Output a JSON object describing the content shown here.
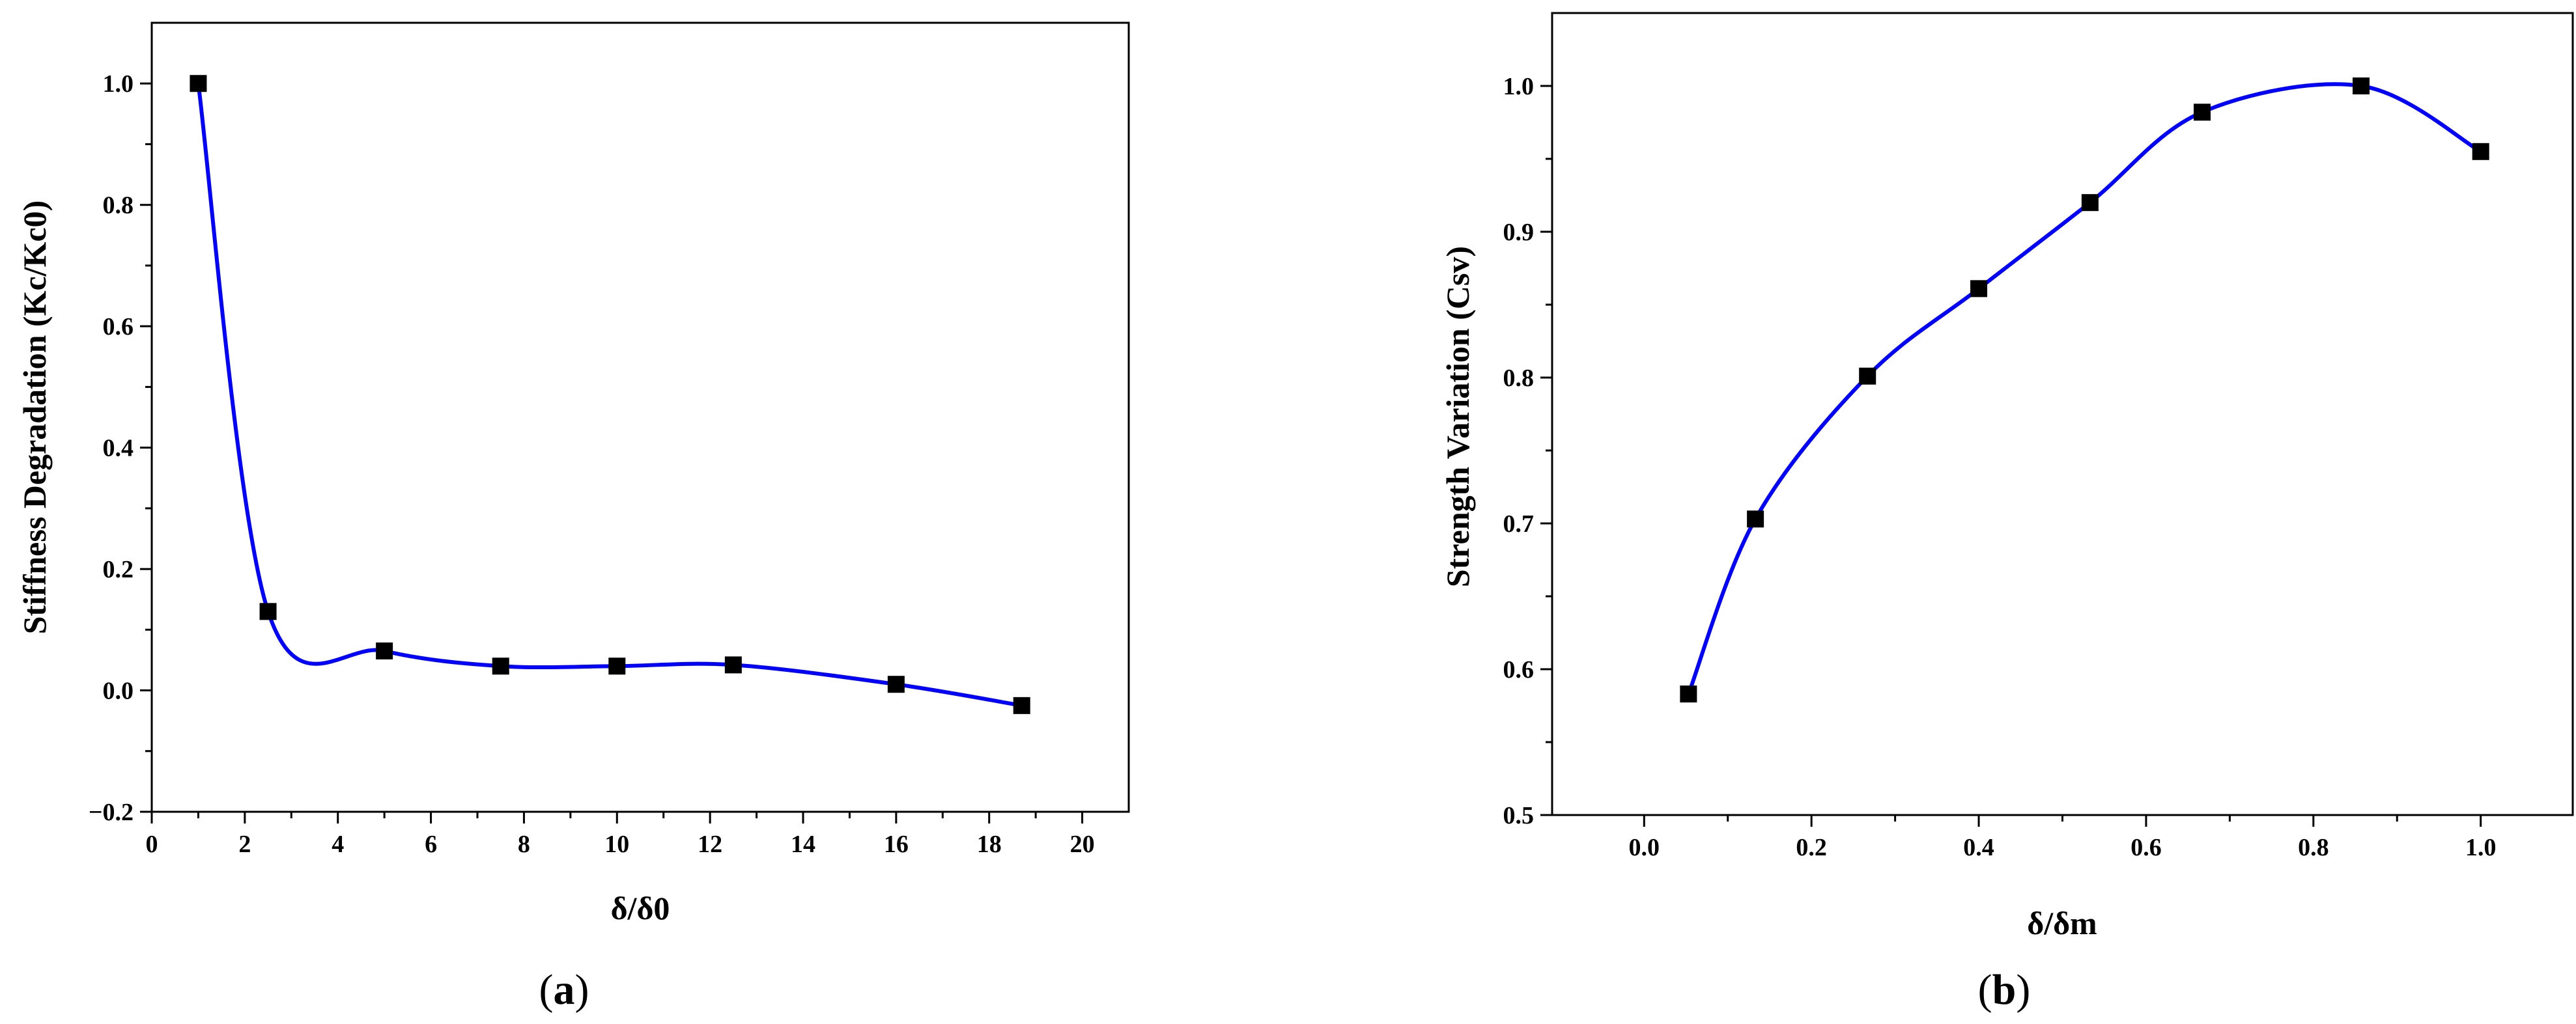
{
  "chart_data": [
    {
      "type": "line",
      "panel_label": "a",
      "xlabel": "δ/δ0",
      "ylabel": "Stiffness Degradation (Kc/Kc0)",
      "xlim": [
        0,
        21
      ],
      "ylim": [
        -0.2,
        1.1
      ],
      "xticks": [
        0,
        2,
        4,
        6,
        8,
        10,
        12,
        14,
        16,
        18,
        20
      ],
      "xtick_labels": [
        "0",
        "2",
        "4",
        "6",
        "8",
        "10",
        "12",
        "14",
        "16",
        "18",
        "20"
      ],
      "yticks": [
        -0.2,
        0.0,
        0.2,
        0.4,
        0.6,
        0.8,
        1.0
      ],
      "ytick_labels": [
        "−0.2",
        "0.0",
        "0.2",
        "0.4",
        "0.6",
        "0.8",
        "1.0"
      ],
      "grid": false,
      "series": [
        {
          "marker": "square",
          "line_color": "#0000ff",
          "marker_color": "#000000",
          "x": [
            1.0,
            2.5,
            5.0,
            7.5,
            10.0,
            12.5,
            16.0,
            18.7
          ],
          "y": [
            1.0,
            0.13,
            0.065,
            0.04,
            0.04,
            0.042,
            0.01,
            -0.025
          ]
        }
      ]
    },
    {
      "type": "line",
      "panel_label": "b",
      "xlabel": "δ/δm",
      "ylabel": "Strength Variation (Csv)",
      "xlim": [
        -0.11,
        1.11
      ],
      "ylim": [
        0.5,
        1.05
      ],
      "xticks": [
        0.0,
        0.2,
        0.4,
        0.6,
        0.8,
        1.0
      ],
      "xtick_labels": [
        "0.0",
        "0.2",
        "0.4",
        "0.6",
        "0.8",
        "1.0"
      ],
      "yticks": [
        0.5,
        0.6,
        0.7,
        0.8,
        0.9,
        1.0
      ],
      "ytick_labels": [
        "0.5",
        "0.6",
        "0.7",
        "0.8",
        "0.9",
        "1.0"
      ],
      "grid": false,
      "series": [
        {
          "marker": "square",
          "line_color": "#0000ff",
          "marker_color": "#000000",
          "x": [
            0.053,
            0.133,
            0.267,
            0.4,
            0.533,
            0.667,
            0.857,
            1.0
          ],
          "y": [
            0.583,
            0.703,
            0.801,
            0.861,
            0.92,
            0.982,
            1.0,
            0.955
          ]
        }
      ]
    }
  ]
}
